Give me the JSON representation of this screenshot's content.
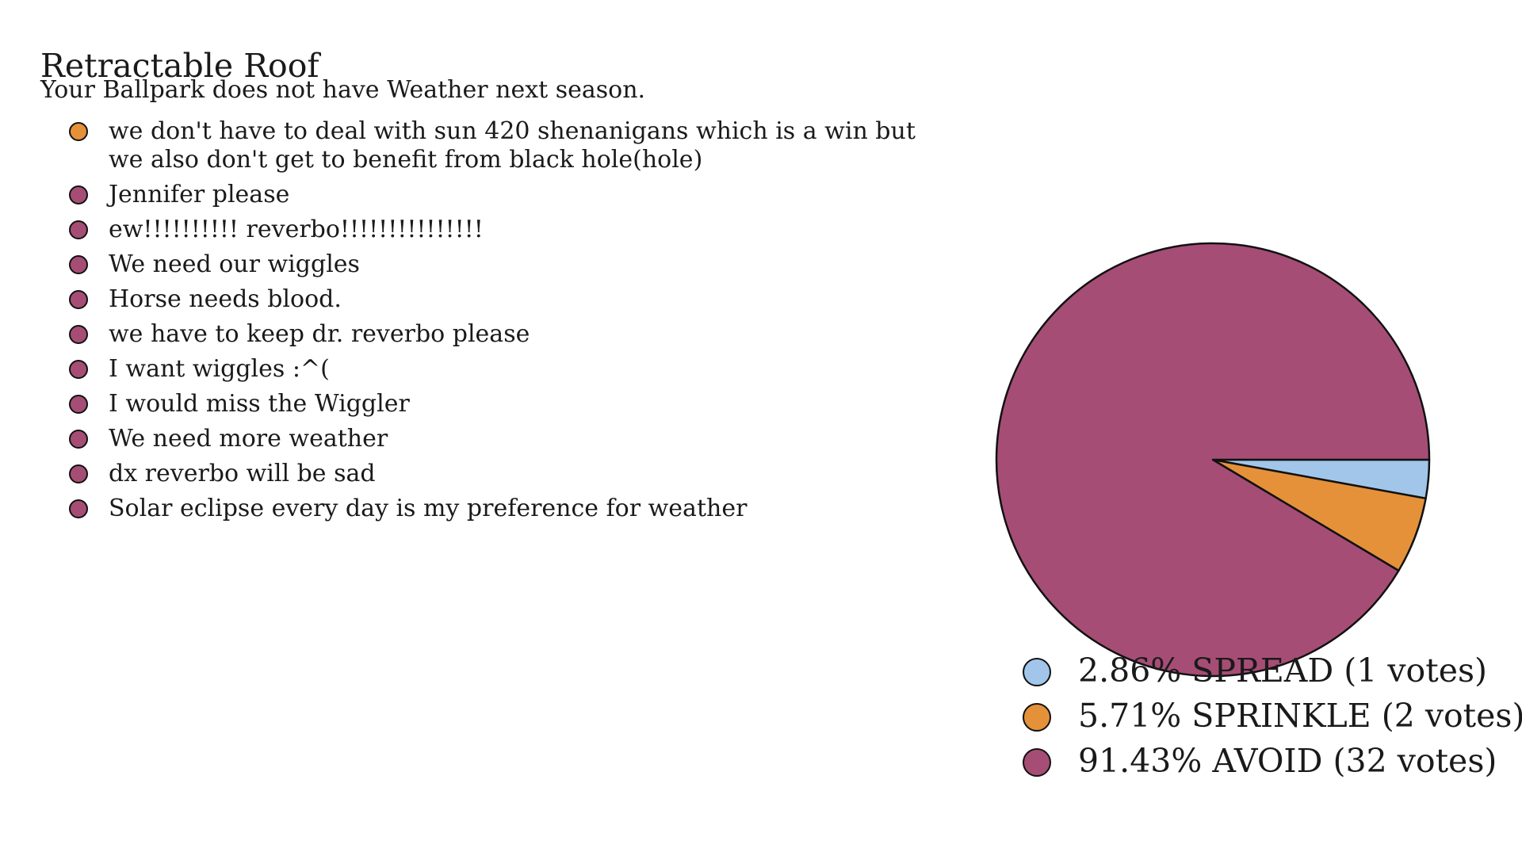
{
  "header": {
    "title": "Retractable Roof",
    "subtitle": "Your Ballpark does not have Weather next season."
  },
  "colors": {
    "spread": "#a1c6ea",
    "sprinkle": "#e5913a",
    "avoid": "#a64d76"
  },
  "comments": [
    {
      "text": "we don't have to deal with sun 420 shenanigans which is a win but we also don't get to benefit from black hole(hole)",
      "option": "sprinkle",
      "color": "#e5913a"
    },
    {
      "text": "Jennifer please",
      "option": "avoid",
      "color": "#a64d76"
    },
    {
      "text": "ew!!!!!!!!!! reverbo!!!!!!!!!!!!!!!",
      "option": "avoid",
      "color": "#a64d76"
    },
    {
      "text": "We need our wiggles",
      "option": "avoid",
      "color": "#a64d76"
    },
    {
      "text": "Horse needs blood.",
      "option": "avoid",
      "color": "#a64d76"
    },
    {
      "text": "we have to keep dr. reverbo please",
      "option": "avoid",
      "color": "#a64d76"
    },
    {
      "text": "I want wiggles :^(",
      "option": "avoid",
      "color": "#a64d76"
    },
    {
      "text": "I would miss the Wiggler",
      "option": "avoid",
      "color": "#a64d76"
    },
    {
      "text": "We need more weather",
      "option": "avoid",
      "color": "#a64d76"
    },
    {
      "text": "dx reverbo will be sad",
      "option": "avoid",
      "color": "#a64d76"
    },
    {
      "text": "Solar eclipse every day is my preference for weather",
      "option": "avoid",
      "color": "#a64d76"
    }
  ],
  "chart_data": {
    "type": "pie",
    "title": "",
    "slices": [
      {
        "label": "SPREAD",
        "percent": 2.86,
        "votes": 1,
        "color": "#a1c6ea",
        "legend": "2.86% SPREAD (1 votes)"
      },
      {
        "label": "SPRINKLE",
        "percent": 5.71,
        "votes": 2,
        "color": "#e5913a",
        "legend": "5.71% SPRINKLE (2 votes)"
      },
      {
        "label": "AVOID",
        "percent": 91.43,
        "votes": 32,
        "color": "#a64d76",
        "legend": "91.43% AVOID (32 votes)"
      }
    ],
    "start_angle": "3 o'clock",
    "direction": "clockwise",
    "legend_position": "bottom"
  }
}
